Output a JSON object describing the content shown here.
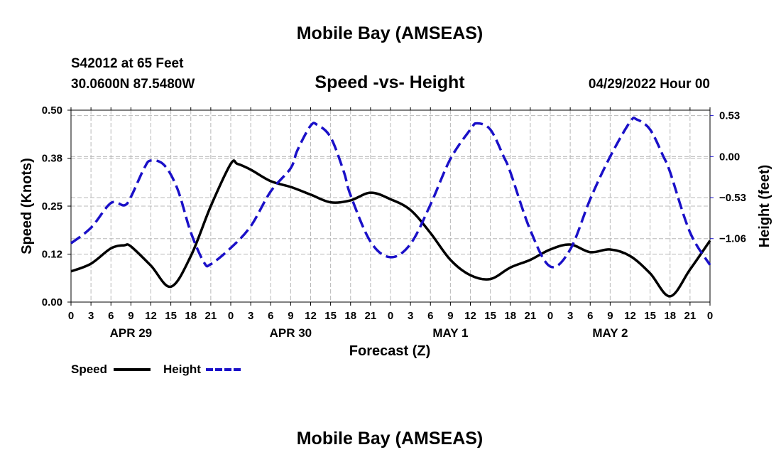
{
  "page_title": "Mobile Bay (AMSEAS)",
  "footer_title": "Mobile Bay (AMSEAS)",
  "station": {
    "name": "S42012 at 65 Feet",
    "coords": "30.0600N  87.5480W"
  },
  "forecast_time": "04/29/2022 Hour 00",
  "chart_data": {
    "type": "line",
    "title": "Speed -vs- Height",
    "xlabel": "Forecast (Z)",
    "ylabel": "Speed (Knots)",
    "y2label": "Height (feet)",
    "x_unit": "hours from 04/29/2022 00Z",
    "xlim": [
      0,
      96
    ],
    "ylim": [
      0,
      0.5
    ],
    "y2lim": [
      -1.88,
      0.6
    ],
    "grid": true,
    "legend_position": "bottom-left",
    "x_ticks": [
      0,
      3,
      6,
      9,
      12,
      15,
      18,
      21,
      24,
      27,
      30,
      33,
      36,
      39,
      42,
      45,
      48,
      51,
      54,
      57,
      60,
      63,
      66,
      69,
      72,
      75,
      78,
      81,
      84,
      87,
      90,
      93,
      96
    ],
    "x_tick_labels": [
      "0",
      "3",
      "6",
      "9",
      "12",
      "15",
      "18",
      "21",
      "0",
      "3",
      "6",
      "9",
      "12",
      "15",
      "18",
      "21",
      "0",
      "3",
      "6",
      "9",
      "12",
      "15",
      "18",
      "21",
      "0",
      "3",
      "6",
      "9",
      "12",
      "15",
      "18",
      "21",
      "0"
    ],
    "y_ticks": [
      0.0,
      0.125,
      0.25,
      0.375,
      0.5
    ],
    "y_tick_labels": [
      "0.00",
      "0.12",
      "0.25",
      "0.38",
      "0.50"
    ],
    "y2_ticks": [
      0.53,
      0.0,
      -0.53,
      -1.06
    ],
    "y2_tick_labels": [
      "0.53",
      "0.00",
      "−0.53",
      "−1.06"
    ],
    "dates": [
      {
        "label": "APR 29",
        "x": 9
      },
      {
        "label": "APR 30",
        "x": 33
      },
      {
        "label": "MAY 1",
        "x": 57
      },
      {
        "label": "MAY 2",
        "x": 81
      }
    ],
    "series": [
      {
        "name": "Speed",
        "axis": "left",
        "color": "#000000",
        "dash": "solid",
        "x": [
          0,
          3,
          6,
          8,
          9,
          12,
          15,
          18,
          21,
          24,
          25,
          27,
          30,
          33,
          36,
          39,
          42,
          45,
          48,
          51,
          54,
          57,
          60,
          63,
          66,
          69,
          72,
          75,
          78,
          81,
          84,
          87,
          90,
          93,
          96
        ],
        "y": [
          0.08,
          0.1,
          0.14,
          0.148,
          0.145,
          0.095,
          0.04,
          0.12,
          0.25,
          0.36,
          0.36,
          0.345,
          0.315,
          0.3,
          0.28,
          0.26,
          0.265,
          0.285,
          0.268,
          0.24,
          0.18,
          0.11,
          0.07,
          0.06,
          0.09,
          0.11,
          0.137,
          0.15,
          0.13,
          0.137,
          0.12,
          0.075,
          0.015,
          0.085,
          0.16
        ]
      },
      {
        "name": "Height",
        "axis": "right",
        "color": "#1a10c8",
        "dash": "dashed",
        "x": [
          0,
          3,
          6,
          8,
          9,
          11,
          12,
          14,
          16,
          18,
          20,
          21,
          24,
          27,
          30,
          33,
          34,
          36,
          37,
          39,
          41,
          42,
          45,
          48,
          51,
          54,
          57,
          60,
          61,
          63,
          65,
          66,
          69,
          72,
          75,
          78,
          81,
          84,
          85,
          87,
          89,
          90,
          93,
          96
        ],
        "y": [
          -1.12,
          -0.92,
          -0.6,
          -0.63,
          -0.52,
          -0.15,
          -0.05,
          -0.11,
          -0.42,
          -0.98,
          -1.37,
          -1.39,
          -1.18,
          -0.9,
          -0.45,
          -0.15,
          0.08,
          0.4,
          0.41,
          0.25,
          -0.2,
          -0.5,
          -1.1,
          -1.3,
          -1.13,
          -0.62,
          -0.03,
          0.35,
          0.43,
          0.35,
          0.0,
          -0.2,
          -0.95,
          -1.42,
          -1.2,
          -0.55,
          0.0,
          0.45,
          0.48,
          0.35,
          0.0,
          -0.2,
          -0.98,
          -1.4
        ]
      }
    ]
  }
}
